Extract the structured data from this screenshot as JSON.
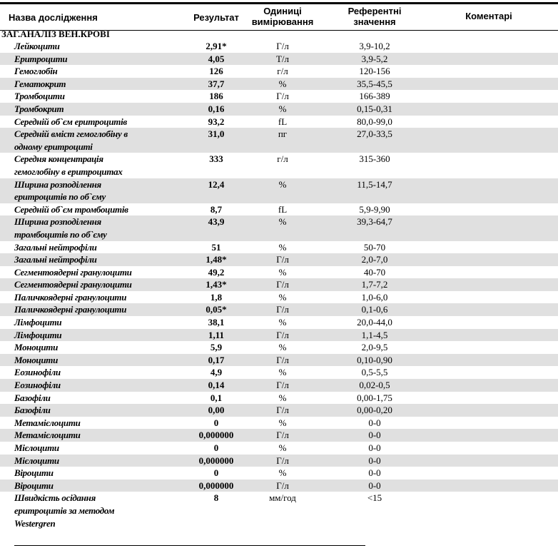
{
  "header": {
    "name": "Назва дослідження",
    "result": "Результат",
    "units": "Одиниці\nвимірювання",
    "reference": "Референтні\nзначення",
    "comments": "Коментарі"
  },
  "section_title": "ЗАГ.АНАЛІЗ ВЕН.КРОВІ",
  "rows": [
    {
      "name": "Лейкоцити",
      "result": "2,91*",
      "unit": "Г/л",
      "ref": "3,9-10,2"
    },
    {
      "name": "Еритроцити",
      "result": "4,05",
      "unit": "Т/л",
      "ref": "3,9-5,2"
    },
    {
      "name": "Гемоглобін",
      "result": "126",
      "unit": "г/л",
      "ref": "120-156"
    },
    {
      "name": "Гематокрит",
      "result": "37,7",
      "unit": "%",
      "ref": "35,5-45,5"
    },
    {
      "name": "Тромбоцити",
      "result": "186",
      "unit": "Г/л",
      "ref": "166-389"
    },
    {
      "name": "Тромбокрит",
      "result": "0,16",
      "unit": "%",
      "ref": "0,15-0,31"
    },
    {
      "name": "Середній об`єм еритроцитів",
      "result": "93,2",
      "unit": "fL",
      "ref": "80,0-99,0"
    },
    {
      "name": "Середній вміст гемоглобіну в\nодному еритроциті",
      "result": "31,0",
      "unit": "пг",
      "ref": "27,0-33,5"
    },
    {
      "name": "Середня концентрація\nгемоглобіну в еритроцитах",
      "result": "333",
      "unit": "г/л",
      "ref": "315-360"
    },
    {
      "name": "Ширина розподілення\nеритроцитів по об`єму",
      "result": "12,4",
      "unit": "%",
      "ref": "11,5-14,7"
    },
    {
      "name": "Середній об`єм тромбоцитів",
      "result": "8,7",
      "unit": "fL",
      "ref": "5,9-9,90"
    },
    {
      "name": "Ширина розподілення\nтромбоцитів по об`єму",
      "result": "43,9",
      "unit": "%",
      "ref": "39,3-64,7"
    },
    {
      "name": "Загальні нейтрофіли",
      "result": "51",
      "unit": "%",
      "ref": "50-70"
    },
    {
      "name": "Загальні нейтрофіли",
      "result": "1,48*",
      "unit": "Г/л",
      "ref": "2,0-7,0"
    },
    {
      "name": "Сегментоядерні гранулоцити",
      "result": "49,2",
      "unit": "%",
      "ref": "40-70"
    },
    {
      "name": "Сегментоядерні гранулоцити",
      "result": "1,43*",
      "unit": "Г/л",
      "ref": "1,7-7,2"
    },
    {
      "name": "Паличкоядерні гранулоцити",
      "result": "1,8",
      "unit": "%",
      "ref": "1,0-6,0"
    },
    {
      "name": "Паличкоядерні гранулоцити",
      "result": "0,05*",
      "unit": "Г/л",
      "ref": "0,1-0,6"
    },
    {
      "name": "Лімфоцити",
      "result": "38,1",
      "unit": "%",
      "ref": "20,0-44,0"
    },
    {
      "name": "Лімфоцити",
      "result": "1,11",
      "unit": "Г/л",
      "ref": "1,1-4,5"
    },
    {
      "name": "Моноцити",
      "result": "5,9",
      "unit": "%",
      "ref": "2,0-9,5"
    },
    {
      "name": "Моноцити",
      "result": "0,17",
      "unit": "Г/л",
      "ref": "0,10-0,90"
    },
    {
      "name": "Еозинофіли",
      "result": "4,9",
      "unit": "%",
      "ref": "0,5-5,5"
    },
    {
      "name": "Еозинофіли",
      "result": "0,14",
      "unit": "Г/л",
      "ref": "0,02-0,5"
    },
    {
      "name": "Базофіли",
      "result": "0,1",
      "unit": "%",
      "ref": "0,00-1,75"
    },
    {
      "name": "Базофіли",
      "result": "0,00",
      "unit": "Г/л",
      "ref": "0,00-0,20"
    },
    {
      "name": "Метамієлоцити",
      "result": "0",
      "unit": "%",
      "ref": "0-0"
    },
    {
      "name": "Метамієлоцити",
      "result": "0,000000",
      "unit": "Г/л",
      "ref": "0-0"
    },
    {
      "name": "Мієлоцити",
      "result": "0",
      "unit": "%",
      "ref": "0-0"
    },
    {
      "name": "Мієлоцити",
      "result": "0,000000",
      "unit": "Г/л",
      "ref": "0-0"
    },
    {
      "name": "Віроцити",
      "result": "0",
      "unit": "%",
      "ref": "0-0"
    },
    {
      "name": "Віроцити",
      "result": "0,000000",
      "unit": "Г/л",
      "ref": "0-0"
    },
    {
      "name": "Швидкість осідання\nеритроцитів за методом\nWestergren",
      "result": "8",
      "unit": "мм/год",
      "ref": "<15"
    }
  ]
}
